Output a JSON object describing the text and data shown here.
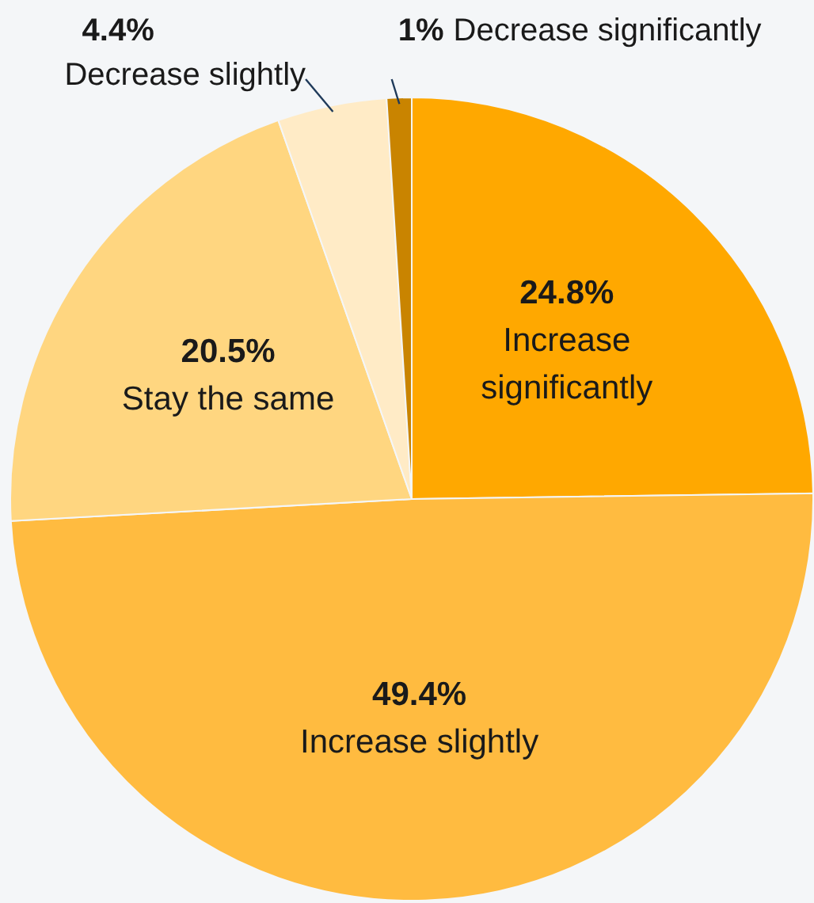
{
  "chart_data": {
    "type": "pie",
    "categories": [
      "Increase significantly",
      "Increase slightly",
      "Stay the same",
      "Decrease slightly",
      "Decrease significantly"
    ],
    "values": [
      24.8,
      49.4,
      20.5,
      4.4,
      1
    ],
    "colors": [
      "#ffa800",
      "#ffbb40",
      "#ffd680",
      "#ffebc6",
      "#c98400"
    ],
    "value_labels": [
      "24.8%",
      "49.4%",
      "20.5%",
      "4.4%",
      "1%"
    ],
    "legend": false
  }
}
